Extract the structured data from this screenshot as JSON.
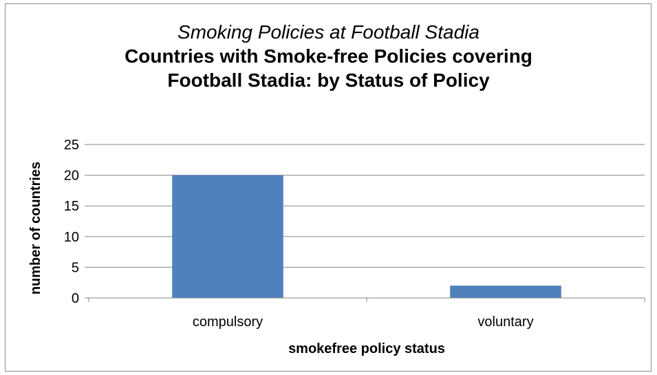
{
  "chart_data": {
    "type": "bar",
    "title": "Smoking Policies at Football Stadia",
    "subtitle": "Countries with Smoke-free Policies covering Football Stadia: by Status of Policy",
    "title_lines": [
      "Smoking Policies at Football Stadia",
      "Countries with Smoke-free Policies covering",
      "Football Stadia: by Status of Policy"
    ],
    "categories": [
      "compulsory",
      "voluntary"
    ],
    "values": [
      20,
      2
    ],
    "xlabel": "smokefree policy status",
    "ylabel": "number of countries",
    "ylim": [
      0,
      25
    ],
    "yticks": [
      "0",
      "5",
      "10",
      "15",
      "20",
      "25"
    ],
    "grid": true,
    "legend": "none",
    "bar_color": "#4f81bd",
    "gridline_color": "#868686"
  }
}
